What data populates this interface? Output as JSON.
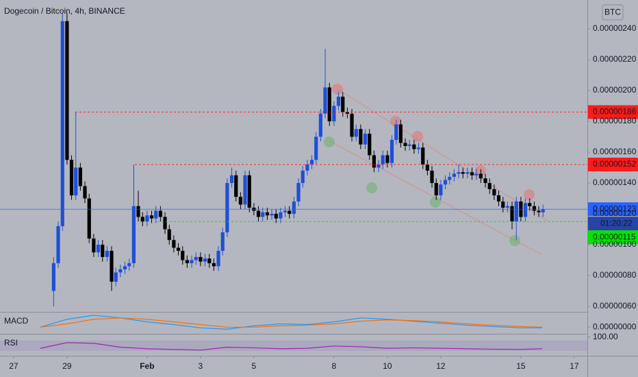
{
  "chart_data": [
    {
      "type": "candlestick",
      "title": "Dogecoin / Bitcoin, 4h, BINANCE",
      "currency": "BTC",
      "countdown": "01:20:22",
      "up_color": "#1e4fd8",
      "down_color": "#000000",
      "xlim": [
        -0.51,
        21.49
      ],
      "xticks": [
        {
          "value": 0,
          "label": "27"
        },
        {
          "value": 2,
          "label": "29"
        },
        {
          "value": 5,
          "label": "Feb"
        },
        {
          "value": 7,
          "label": "3"
        },
        {
          "value": 9,
          "label": "5"
        },
        {
          "value": 12,
          "label": "8"
        },
        {
          "value": 14,
          "label": "10"
        },
        {
          "value": 16,
          "label": "12"
        },
        {
          "value": 19,
          "label": "15"
        },
        {
          "value": 21,
          "label": "17"
        }
      ],
      "ylim": [
        5.64e-07,
        2.587e-06
      ],
      "yticks": [
        {
          "value": 2.4e-06,
          "label": "0.00000240"
        },
        {
          "value": 2.2e-06,
          "label": "0.00000220"
        },
        {
          "value": 2e-06,
          "label": "0.00000200"
        },
        {
          "value": 1.8e-06,
          "label": "0.00000180"
        },
        {
          "value": 1.6e-06,
          "label": "0.00000160"
        },
        {
          "value": 1.4e-06,
          "label": "0.00000140"
        },
        {
          "value": 1.2e-06,
          "label": "0.00000120"
        },
        {
          "value": 1e-06,
          "label": "0.00000100"
        },
        {
          "value": 8e-07,
          "label": "0.00000080"
        },
        {
          "value": 6e-07,
          "label": "0.00000060"
        }
      ],
      "price_lines": [
        {
          "value": 1.86e-06,
          "label": "0.00000186",
          "color": "#ff1a1a"
        },
        {
          "value": 1.52e-06,
          "label": "0.00000152",
          "color": "#ff1a1a"
        },
        {
          "value": 1.23e-06,
          "label": "0.00000123",
          "color": "#2962ff"
        },
        {
          "value": 1.15e-06,
          "label": "0.00000115",
          "color": "#00e600"
        }
      ],
      "x": [
        1.5,
        1.67,
        1.83,
        2,
        2.17,
        2.33,
        2.5,
        2.67,
        2.83,
        3,
        3.17,
        3.33,
        3.5,
        3.67,
        3.83,
        4,
        4.17,
        4.33,
        4.5,
        4.67,
        4.83,
        5,
        5.17,
        5.33,
        5.5,
        5.67,
        5.83,
        6,
        6.17,
        6.33,
        6.5,
        6.67,
        6.83,
        7,
        7.17,
        7.33,
        7.5,
        7.67,
        7.83,
        8,
        8.17,
        8.33,
        8.5,
        8.67,
        8.83,
        9,
        9.17,
        9.33,
        9.5,
        9.67,
        9.83,
        10,
        10.17,
        10.33,
        10.5,
        10.67,
        10.83,
        11,
        11.17,
        11.33,
        11.5,
        11.67,
        11.83,
        12,
        12.17,
        12.33,
        12.5,
        12.67,
        12.83,
        13,
        13.17,
        13.33,
        13.5,
        13.67,
        13.83,
        14,
        14.17,
        14.33,
        14.5,
        14.67,
        14.83,
        15,
        15.17,
        15.33,
        15.5,
        15.67,
        15.83,
        16,
        16.17,
        16.33,
        16.5,
        16.67,
        16.83,
        17,
        17.17,
        17.33,
        17.5,
        17.67,
        17.83,
        18,
        18.17,
        18.33,
        18.5,
        18.67,
        18.83,
        19,
        19.17,
        19.33,
        19.5,
        19.67,
        19.83
      ],
      "open": [
        7e-07,
        8.8e-07,
        1.12e-06,
        2.45e-06,
        1.55e-06,
        1.32e-06,
        1.5e-06,
        1.38e-06,
        1.3e-06,
        1.04e-06,
        9.5e-07,
        1e-06,
        9.2e-07,
        9.6e-07,
        7.6e-07,
        8.2e-07,
        8.4e-07,
        8.6e-07,
        8.8e-07,
        1.25e-06,
        1.18e-06,
        1.15e-06,
        1.19e-06,
        1.17e-06,
        1.22e-06,
        1.18e-06,
        1.1e-06,
        1.03e-06,
        9.8e-07,
        9.6e-07,
        9e-07,
        8.8e-07,
        9e-07,
        9.2e-07,
        8.9e-07,
        9.1e-07,
        8.8e-07,
        8.6e-07,
        9.6e-07,
        1.08e-06,
        1.4e-06,
        1.45e-06,
        1.31e-06,
        1.26e-06,
        1.45e-06,
        1.24e-06,
        1.22e-06,
        1.18e-06,
        1.21e-06,
        1.19e-06,
        1.2e-06,
        1.17e-06,
        1.21e-06,
        1.22e-06,
        1.2e-06,
        1.28e-06,
        1.4e-06,
        1.48e-06,
        1.52e-06,
        1.55e-06,
        1.7e-06,
        1.85e-06,
        2.02e-06,
        1.8e-06,
        1.9e-06,
        1.96e-06,
        1.86e-06,
        1.85e-06,
        1.7e-06,
        1.75e-06,
        1.65e-06,
        1.72e-06,
        1.58e-06,
        1.5e-06,
        1.52e-06,
        1.58e-06,
        1.53e-06,
        1.68e-06,
        1.78e-06,
        1.66e-06,
        1.64e-06,
        1.65e-06,
        1.62e-06,
        1.63e-06,
        1.52e-06,
        1.48e-06,
        1.4e-06,
        1.32e-06,
        1.39e-06,
        1.42e-06,
        1.44e-06,
        1.46e-06,
        1.47e-06,
        1.46e-06,
        1.47e-06,
        1.45e-06,
        1.46e-06,
        1.43e-06,
        1.4e-06,
        1.36e-06,
        1.32e-06,
        1.28e-06,
        1.24e-06,
        1.25e-06,
        1.15e-06,
        1.28e-06,
        1.18e-06,
        1.27e-06,
        1.25e-06,
        1.22e-06,
        1.21e-06
      ],
      "high": [
        9.2e-07,
        1.15e-06,
        2.5e-06,
        2.5e-06,
        1.58e-06,
        1.86e-06,
        1.53e-06,
        1.41e-06,
        1.33e-06,
        1.07e-06,
        1.03e-06,
        1.03e-06,
        9.9e-07,
        9.9e-07,
        8.5e-07,
        8.7e-07,
        8.9e-07,
        9.1e-07,
        1.52e-06,
        1.35e-06,
        1.21e-06,
        1.22e-06,
        1.22e-06,
        1.25e-06,
        1.25e-06,
        1.21e-06,
        1.13e-06,
        1.06e-06,
        1.01e-06,
        9.9e-07,
        9.3e-07,
        9.3e-07,
        9.5e-07,
        9.5e-07,
        9.4e-07,
        9.4e-07,
        9.1e-07,
        9.9e-07,
        1.11e-06,
        1.43e-06,
        1.5e-06,
        1.48e-06,
        1.34e-06,
        1.48e-06,
        1.48e-06,
        1.27e-06,
        1.25e-06,
        1.24e-06,
        1.24e-06,
        1.23e-06,
        1.23e-06,
        1.24e-06,
        1.25e-06,
        1.25e-06,
        1.31e-06,
        1.43e-06,
        1.51e-06,
        1.55e-06,
        1.58e-06,
        1.73e-06,
        1.88e-06,
        2.27e-06,
        2.05e-06,
        1.93e-06,
        1.99e-06,
        1.99e-06,
        1.89e-06,
        1.88e-06,
        1.78e-06,
        1.78e-06,
        1.75e-06,
        1.75e-06,
        1.61e-06,
        1.55e-06,
        1.61e-06,
        1.61e-06,
        1.71e-06,
        1.81e-06,
        1.81e-06,
        1.69e-06,
        1.68e-06,
        1.68e-06,
        1.66e-06,
        1.66e-06,
        1.55e-06,
        1.51e-06,
        1.43e-06,
        1.42e-06,
        1.45e-06,
        1.47e-06,
        1.49e-06,
        1.52e-06,
        1.5e-06,
        1.5e-06,
        1.5e-06,
        1.49e-06,
        1.49e-06,
        1.46e-06,
        1.43e-06,
        1.39e-06,
        1.35e-06,
        1.31e-06,
        1.28e-06,
        1.28e-06,
        1.31e-06,
        1.31e-06,
        1.3e-06,
        1.3e-06,
        1.28e-06,
        1.25e-06,
        1.26e-06
      ],
      "low": [
        6e-07,
        8.5e-07,
        1.09e-06,
        1.52e-06,
        1.29e-06,
        1.29e-06,
        1.35e-06,
        1.27e-06,
        1.01e-06,
        9.2e-07,
        9.2e-07,
        8.9e-07,
        8.9e-07,
        7e-07,
        7.3e-07,
        7.9e-07,
        8.1e-07,
        8.3e-07,
        8.5e-07,
        1.15e-06,
        1.12e-06,
        1.12e-06,
        1.14e-06,
        1.14e-06,
        1.15e-06,
        1.07e-06,
        1e-06,
        9.5e-07,
        9.3e-07,
        8.7e-07,
        8.5e-07,
        8.5e-07,
        8.7e-07,
        8.6e-07,
        8.6e-07,
        8.5e-07,
        8.3e-07,
        8.3e-07,
        9.3e-07,
        1.05e-06,
        1.37e-06,
        1.28e-06,
        1.23e-06,
        1.23e-06,
        1.21e-06,
        1.19e-06,
        1.15e-06,
        1.15e-06,
        1.16e-06,
        1.16e-06,
        1.14e-06,
        1.14e-06,
        1.18e-06,
        1.17e-06,
        1.17e-06,
        1.25e-06,
        1.37e-06,
        1.45e-06,
        1.49e-06,
        1.52e-06,
        1.67e-06,
        1.82e-06,
        1.77e-06,
        1.77e-06,
        1.87e-06,
        1.83e-06,
        1.82e-06,
        1.67e-06,
        1.67e-06,
        1.62e-06,
        1.62e-06,
        1.55e-06,
        1.47e-06,
        1.47e-06,
        1.49e-06,
        1.5e-06,
        1.5e-06,
        1.65e-06,
        1.63e-06,
        1.61e-06,
        1.61e-06,
        1.59e-06,
        1.59e-06,
        1.49e-06,
        1.45e-06,
        1.37e-06,
        1.29e-06,
        1.29e-06,
        1.36e-06,
        1.39e-06,
        1.41e-06,
        1.43e-06,
        1.43e-06,
        1.43e-06,
        1.42e-06,
        1.42e-06,
        1.4e-06,
        1.37e-06,
        1.33e-06,
        1.29e-06,
        1.25e-06,
        1.21e-06,
        1.21e-06,
        1.1e-06,
        1.03e-06,
        1.15e-06,
        1.15e-06,
        1.22e-06,
        1.19e-06,
        1.18e-06,
        1.18e-06
      ],
      "close": [
        8.8e-07,
        1.12e-06,
        2.45e-06,
        1.55e-06,
        1.32e-06,
        1.5e-06,
        1.38e-06,
        1.3e-06,
        1.04e-06,
        9.5e-07,
        1e-06,
        9.2e-07,
        9.6e-07,
        7.6e-07,
        8.2e-07,
        8.4e-07,
        8.6e-07,
        8.8e-07,
        1.25e-06,
        1.18e-06,
        1.15e-06,
        1.19e-06,
        1.17e-06,
        1.22e-06,
        1.18e-06,
        1.1e-06,
        1.03e-06,
        9.8e-07,
        9.6e-07,
        9e-07,
        8.8e-07,
        9e-07,
        9.2e-07,
        8.9e-07,
        9.1e-07,
        8.8e-07,
        8.6e-07,
        9.6e-07,
        1.08e-06,
        1.4e-06,
        1.45e-06,
        1.31e-06,
        1.26e-06,
        1.45e-06,
        1.24e-06,
        1.22e-06,
        1.18e-06,
        1.21e-06,
        1.19e-06,
        1.2e-06,
        1.17e-06,
        1.21e-06,
        1.22e-06,
        1.2e-06,
        1.28e-06,
        1.4e-06,
        1.48e-06,
        1.52e-06,
        1.55e-06,
        1.7e-06,
        1.85e-06,
        2.02e-06,
        1.8e-06,
        1.9e-06,
        1.96e-06,
        1.86e-06,
        1.85e-06,
        1.7e-06,
        1.75e-06,
        1.65e-06,
        1.72e-06,
        1.58e-06,
        1.5e-06,
        1.52e-06,
        1.58e-06,
        1.53e-06,
        1.68e-06,
        1.78e-06,
        1.66e-06,
        1.64e-06,
        1.65e-06,
        1.62e-06,
        1.63e-06,
        1.52e-06,
        1.48e-06,
        1.4e-06,
        1.32e-06,
        1.39e-06,
        1.42e-06,
        1.44e-06,
        1.46e-06,
        1.47e-06,
        1.46e-06,
        1.47e-06,
        1.45e-06,
        1.46e-06,
        1.43e-06,
        1.4e-06,
        1.36e-06,
        1.32e-06,
        1.28e-06,
        1.24e-06,
        1.25e-06,
        1.15e-06,
        1.28e-06,
        1.18e-06,
        1.27e-06,
        1.25e-06,
        1.22e-06,
        1.21e-06,
        1.23e-06
      ]
    },
    {
      "type": "line",
      "title": "MACD",
      "ylim": [
        -1e-07,
        2e-07
      ],
      "yticks": [
        {
          "value": 0,
          "label": "0.00000000"
        }
      ],
      "x": [
        1,
        2,
        3,
        4,
        5,
        6,
        7,
        8,
        9,
        10,
        11,
        12,
        13,
        14,
        15,
        16,
        17,
        18,
        19,
        19.8
      ],
      "series": [
        {
          "color": "#2196f3",
          "values": [
            0,
            1.2e-07,
            1.8e-07,
            1.4e-07,
            8e-08,
            4e-08,
            -1e-08,
            -3e-08,
            2e-08,
            5e-08,
            4e-08,
            8e-08,
            1.4e-07,
            1.2e-07,
            9e-08,
            6e-08,
            3e-08,
            1e-08,
            -1e-08,
            -1e-08
          ]
        },
        {
          "color": "#ff6d00",
          "values": [
            0,
            5e-08,
            1.2e-07,
            1.4e-07,
            1.2e-07,
            8e-08,
            4e-08,
            0,
            0,
            2e-08,
            3e-08,
            5e-08,
            9e-08,
            1.1e-07,
            1e-07,
            8e-08,
            5e-08,
            3e-08,
            1e-08,
            0
          ]
        }
      ]
    },
    {
      "type": "line",
      "title": "RSI",
      "ylim": [
        20,
        105
      ],
      "yticks": [
        {
          "value": 100,
          "label": "100.00"
        }
      ],
      "x": [
        1,
        2,
        3,
        4,
        5,
        6,
        7,
        8,
        9,
        10,
        11,
        12,
        13,
        14,
        15,
        16,
        17,
        18,
        19,
        19.8
      ],
      "series": [
        {
          "color": "#9c27b0",
          "values": [
            50,
            75,
            72,
            55,
            48,
            45,
            42,
            55,
            52,
            48,
            50,
            60,
            57,
            50,
            52,
            50,
            48,
            46,
            45,
            48
          ]
        }
      ]
    }
  ]
}
